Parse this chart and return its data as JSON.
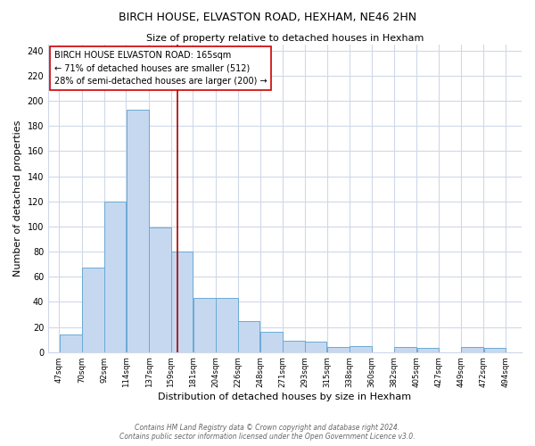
{
  "title": "BIRCH HOUSE, ELVASTON ROAD, HEXHAM, NE46 2HN",
  "subtitle": "Size of property relative to detached houses in Hexham",
  "xlabel": "Distribution of detached houses by size in Hexham",
  "ylabel": "Number of detached properties",
  "bar_color": "#c5d8f0",
  "bar_edge_color": "#6aaad4",
  "bar_left_edges": [
    47,
    70,
    92,
    114,
    137,
    159,
    181,
    204,
    226,
    248,
    271,
    293,
    315,
    338,
    360,
    382,
    405,
    427,
    449,
    472
  ],
  "bar_heights": [
    14,
    67,
    120,
    193,
    99,
    80,
    43,
    43,
    25,
    16,
    9,
    8,
    4,
    5,
    0,
    4,
    3,
    0,
    4,
    3
  ],
  "bar_widths": [
    23,
    22,
    22,
    23,
    22,
    22,
    23,
    22,
    22,
    23,
    22,
    22,
    23,
    22,
    22,
    23,
    22,
    22,
    23,
    22
  ],
  "tick_labels": [
    "47sqm",
    "70sqm",
    "92sqm",
    "114sqm",
    "137sqm",
    "159sqm",
    "181sqm",
    "204sqm",
    "226sqm",
    "248sqm",
    "271sqm",
    "293sqm",
    "315sqm",
    "338sqm",
    "360sqm",
    "382sqm",
    "405sqm",
    "427sqm",
    "449sqm",
    "472sqm",
    "494sqm"
  ],
  "tick_positions": [
    47,
    70,
    92,
    114,
    137,
    159,
    181,
    204,
    226,
    248,
    271,
    293,
    315,
    338,
    360,
    382,
    405,
    427,
    449,
    472,
    494
  ],
  "vline_x": 165,
  "vline_color": "#aa0000",
  "ylim": [
    0,
    245
  ],
  "xlim": [
    36,
    510
  ],
  "annotation_title": "BIRCH HOUSE ELVASTON ROAD: 165sqm",
  "annotation_line1": "← 71% of detached houses are smaller (512)",
  "annotation_line2": "28% of semi-detached houses are larger (200) →",
  "footer_line1": "Contains HM Land Registry data © Crown copyright and database right 2024.",
  "footer_line2": "Contains public sector information licensed under the Open Government Licence v3.0.",
  "background_color": "#ffffff",
  "plot_bg_color": "#ffffff",
  "grid_color": "#d0d8e8"
}
